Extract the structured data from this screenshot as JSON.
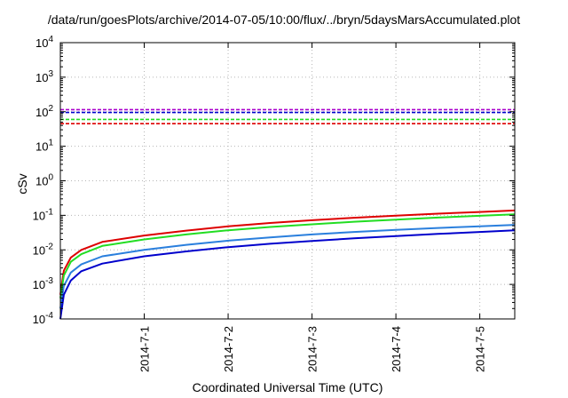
{
  "chart_data": {
    "type": "line",
    "title": "/data/run/goesPlots/archive/2014-07-05/10:00/flux/../bryn/5daysMarsAccumulated.plot",
    "xlabel": "Coordinated Universal Time (UTC)",
    "ylabel": "cSv",
    "xlim": [
      "2014-06-30T00:00",
      "2014-07-05T10:00"
    ],
    "ylim": [
      0.0001,
      10000
    ],
    "yscale": "log",
    "grid": true,
    "x_ticks": [
      "2014-7-1",
      "2014-7-2",
      "2014-7-3",
      "2014-7-4",
      "2014-7-5"
    ],
    "y_ticks": [
      {
        "base": "10",
        "exp": "-4",
        "value": 0.0001
      },
      {
        "base": "10",
        "exp": "-3",
        "value": 0.001
      },
      {
        "base": "10",
        "exp": "-2",
        "value": 0.01
      },
      {
        "base": "10",
        "exp": "-1",
        "value": 0.1
      },
      {
        "base": "10",
        "exp": "0",
        "value": 1
      },
      {
        "base": "10",
        "exp": "1",
        "value": 10
      },
      {
        "base": "10",
        "exp": "2",
        "value": 100
      },
      {
        "base": "10",
        "exp": "3",
        "value": 1000
      },
      {
        "base": "10",
        "exp": "4",
        "value": 10000
      }
    ],
    "series": [
      {
        "color": "#dd0000",
        "style": "solid",
        "points": [
          [
            "2014-06-30T00:00",
            0.0005
          ],
          [
            "2014-06-30T01:00",
            0.0025
          ],
          [
            "2014-06-30T03:00",
            0.006
          ],
          [
            "2014-06-30T06:00",
            0.01
          ],
          [
            "2014-06-30T12:00",
            0.017
          ],
          [
            "2014-07-01T00:00",
            0.026
          ],
          [
            "2014-07-01T12:00",
            0.036
          ],
          [
            "2014-07-02T00:00",
            0.048
          ],
          [
            "2014-07-02T12:00",
            0.06
          ],
          [
            "2014-07-03T00:00",
            0.072
          ],
          [
            "2014-07-03T12:00",
            0.085
          ],
          [
            "2014-07-04T00:00",
            0.098
          ],
          [
            "2014-07-04T12:00",
            0.112
          ],
          [
            "2014-07-05T00:00",
            0.125
          ],
          [
            "2014-07-05T10:00",
            0.138
          ]
        ]
      },
      {
        "color": "#22dd22",
        "style": "solid",
        "points": [
          [
            "2014-06-30T00:00",
            0.0004
          ],
          [
            "2014-06-30T01:00",
            0.0018
          ],
          [
            "2014-06-30T03:00",
            0.0045
          ],
          [
            "2014-06-30T06:00",
            0.0075
          ],
          [
            "2014-06-30T12:00",
            0.013
          ],
          [
            "2014-07-01T00:00",
            0.02
          ],
          [
            "2014-07-01T12:00",
            0.028
          ],
          [
            "2014-07-02T00:00",
            0.037
          ],
          [
            "2014-07-02T12:00",
            0.046
          ],
          [
            "2014-07-03T00:00",
            0.055
          ],
          [
            "2014-07-03T12:00",
            0.065
          ],
          [
            "2014-07-04T00:00",
            0.075
          ],
          [
            "2014-07-04T12:00",
            0.086
          ],
          [
            "2014-07-05T00:00",
            0.097
          ],
          [
            "2014-07-05T10:00",
            0.107
          ]
        ]
      },
      {
        "color": "#2a7fdd",
        "style": "solid",
        "points": [
          [
            "2014-06-30T00:00",
            0.0002
          ],
          [
            "2014-06-30T01:00",
            0.0009
          ],
          [
            "2014-06-30T03:00",
            0.0022
          ],
          [
            "2014-06-30T06:00",
            0.0038
          ],
          [
            "2014-06-30T12:00",
            0.0065
          ],
          [
            "2014-07-01T00:00",
            0.01
          ],
          [
            "2014-07-01T12:00",
            0.014
          ],
          [
            "2014-07-02T00:00",
            0.0185
          ],
          [
            "2014-07-02T12:00",
            0.023
          ],
          [
            "2014-07-03T00:00",
            0.028
          ],
          [
            "2014-07-03T12:00",
            0.033
          ],
          [
            "2014-07-04T00:00",
            0.038
          ],
          [
            "2014-07-04T12:00",
            0.043
          ],
          [
            "2014-07-05T00:00",
            0.048
          ],
          [
            "2014-07-05T10:00",
            0.053
          ]
        ]
      },
      {
        "color": "#0000cc",
        "style": "solid",
        "points": [
          [
            "2014-06-30T00:00",
            0.0001
          ],
          [
            "2014-06-30T01:00",
            0.0005
          ],
          [
            "2014-06-30T03:00",
            0.0013
          ],
          [
            "2014-06-30T06:00",
            0.0024
          ],
          [
            "2014-06-30T12:00",
            0.004
          ],
          [
            "2014-07-01T00:00",
            0.0065
          ],
          [
            "2014-07-01T12:00",
            0.009
          ],
          [
            "2014-07-02T00:00",
            0.012
          ],
          [
            "2014-07-02T12:00",
            0.015
          ],
          [
            "2014-07-03T00:00",
            0.018
          ],
          [
            "2014-07-03T12:00",
            0.0215
          ],
          [
            "2014-07-04T00:00",
            0.025
          ],
          [
            "2014-07-04T12:00",
            0.029
          ],
          [
            "2014-07-05T00:00",
            0.033
          ],
          [
            "2014-07-05T10:00",
            0.037
          ]
        ]
      },
      {
        "color": "#aa00cc",
        "style": "dashed",
        "points": [
          [
            "2014-06-30T00:00",
            115
          ],
          [
            "2014-07-05T10:00",
            115
          ]
        ]
      },
      {
        "color": "#0000cc",
        "style": "dashed",
        "points": [
          [
            "2014-06-30T00:00",
            95
          ],
          [
            "2014-07-05T10:00",
            95
          ]
        ]
      },
      {
        "color": "#22dd22",
        "style": "dashed",
        "points": [
          [
            "2014-06-30T00:00",
            60
          ],
          [
            "2014-07-05T10:00",
            60
          ]
        ]
      },
      {
        "color": "#dd0000",
        "style": "dashed",
        "points": [
          [
            "2014-06-30T00:00",
            45
          ],
          [
            "2014-07-05T10:00",
            45
          ]
        ]
      }
    ]
  }
}
